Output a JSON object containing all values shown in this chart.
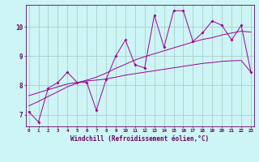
{
  "xlabel": "Windchill (Refroidissement éolien,°C)",
  "bg_color": "#cef5f5",
  "line_color": "#990099",
  "grid_color": "#aacccc",
  "axis_color": "#660066",
  "text_color": "#660066",
  "yticks": [
    7,
    8,
    9,
    10
  ],
  "xticks": [
    0,
    1,
    2,
    3,
    4,
    5,
    6,
    7,
    8,
    9,
    10,
    11,
    12,
    13,
    14,
    15,
    16,
    17,
    18,
    19,
    20,
    21,
    22,
    23
  ],
  "line1_x": [
    0,
    1,
    2,
    3,
    4,
    5,
    6,
    7,
    8,
    9,
    10,
    11,
    12,
    13,
    14,
    15,
    16,
    17,
    18,
    19,
    20,
    21,
    22,
    23
  ],
  "line1_y": [
    7.1,
    6.75,
    7.9,
    8.1,
    8.45,
    8.1,
    8.1,
    7.15,
    8.2,
    9.0,
    9.55,
    8.7,
    8.6,
    10.4,
    9.3,
    10.55,
    10.55,
    9.5,
    9.8,
    10.2,
    10.05,
    9.55,
    10.05,
    8.45
  ],
  "line2_x": [
    0,
    1,
    2,
    3,
    4,
    5,
    6,
    7,
    8,
    9,
    10,
    11,
    12,
    13,
    14,
    15,
    16,
    17,
    18,
    19,
    20,
    21,
    22,
    23
  ],
  "line2_y": [
    7.65,
    7.75,
    7.85,
    7.95,
    8.05,
    8.1,
    8.15,
    8.18,
    8.22,
    8.28,
    8.35,
    8.4,
    8.45,
    8.5,
    8.55,
    8.6,
    8.65,
    8.7,
    8.75,
    8.78,
    8.82,
    8.84,
    8.85,
    8.45
  ],
  "line3_x": [
    0,
    1,
    2,
    3,
    4,
    5,
    6,
    7,
    8,
    9,
    10,
    11,
    12,
    13,
    14,
    15,
    16,
    17,
    18,
    19,
    20,
    21,
    22,
    23
  ],
  "line3_y": [
    7.3,
    7.45,
    7.62,
    7.78,
    7.95,
    8.08,
    8.18,
    8.28,
    8.42,
    8.58,
    8.72,
    8.87,
    8.98,
    9.08,
    9.18,
    9.28,
    9.38,
    9.48,
    9.57,
    9.63,
    9.72,
    9.79,
    9.85,
    9.82
  ]
}
